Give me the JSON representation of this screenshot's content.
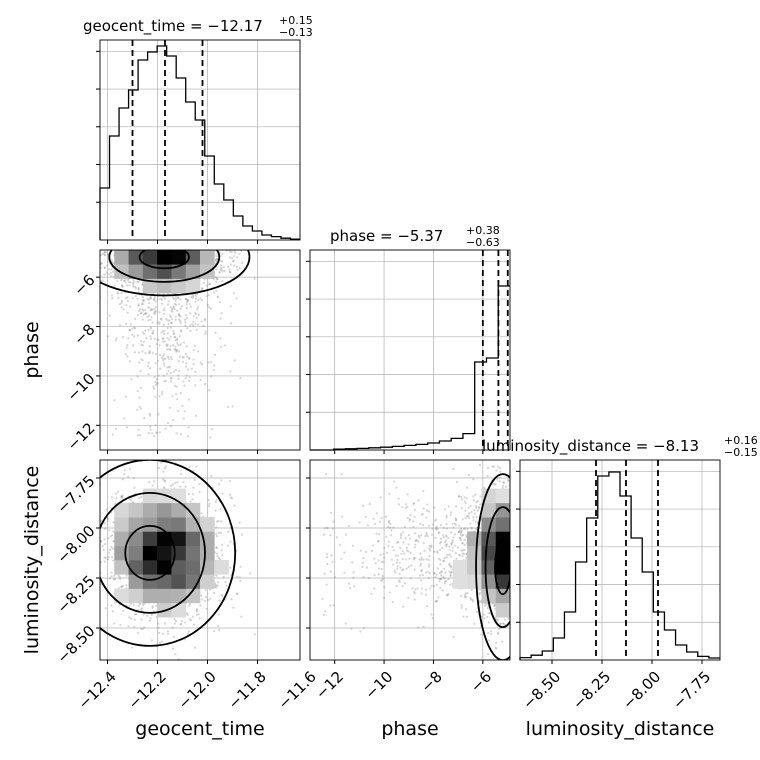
{
  "chart_data": {
    "type": "corner",
    "parameters": [
      {
        "name": "geocent_time",
        "title": {
          "prefix": "geocent_time = −12.17",
          "upper": "+0.15",
          "lower": "−0.13"
        },
        "range": [
          -12.43,
          -11.63
        ],
        "ticks": [
          -12.4,
          -12.2,
          -12.0,
          -11.8,
          -11.6
        ],
        "tick_labels": [
          "−12.4",
          "−12.2",
          "−12.0",
          "−11.8",
          "−11.6"
        ],
        "quantiles": [
          -12.3,
          -12.17,
          -12.02
        ],
        "hist": [
          0.26,
          0.52,
          0.66,
          0.75,
          0.9,
          0.94,
          0.97,
          0.92,
          0.81,
          0.69,
          0.6,
          0.42,
          0.28,
          0.2,
          0.12,
          0.07,
          0.045,
          0.025,
          0.017,
          0.009,
          0.004
        ]
      },
      {
        "name": "phase",
        "title": {
          "prefix": "phase = −5.37",
          "upper": "+0.38",
          "lower": "−0.63"
        },
        "range": [
          -13.0,
          -4.9
        ],
        "ticks": [
          -12,
          -10,
          -8,
          -6
        ],
        "tick_labels": [
          "−12",
          "−10",
          "−8",
          "−6"
        ],
        "quantiles": [
          -6.0,
          -5.37,
          -4.99
        ],
        "hist": [
          0.0,
          0.0,
          0.004,
          0.006,
          0.008,
          0.011,
          0.014,
          0.018,
          0.023,
          0.028,
          0.035,
          0.045,
          0.058,
          0.082,
          0.44,
          0.46,
          0.82
        ]
      },
      {
        "name": "luminosity_distance",
        "title": {
          "prefix": "luminosity_distance = −8.13",
          "upper": "+0.16",
          "lower": "−0.15"
        },
        "range": [
          -8.66,
          -7.66
        ],
        "ticks": [
          -8.5,
          -8.25,
          -8.0,
          -7.75
        ],
        "tick_labels": [
          "−8.50",
          "−8.25",
          "−8.00",
          "−7.75"
        ],
        "quantiles": [
          -8.28,
          -8.13,
          -7.97
        ],
        "hist": [
          0.012,
          0.024,
          0.045,
          0.11,
          0.24,
          0.49,
          0.71,
          0.92,
          0.94,
          0.82,
          0.61,
          0.44,
          0.24,
          0.15,
          0.075,
          0.04,
          0.018,
          0.01
        ]
      }
    ],
    "y_tick_labels": {
      "phase": [
        "−6",
        "−8",
        "−10",
        "−12"
      ],
      "luminosity_distance": [
        "−7.75",
        "−8.00",
        "−8.25",
        "−8.50"
      ]
    },
    "samples": {
      "geocent_time": {
        "mean": -12.17,
        "sd": 0.11
      },
      "phase": {
        "mode": -5.3,
        "tail_to": -12.5
      },
      "luminosity_distance": {
        "mean": -8.13,
        "sd": 0.15
      }
    },
    "grid": true,
    "colors": {
      "line": "#000000",
      "scatter": "#888888",
      "grid": "#b0b0b0"
    }
  }
}
